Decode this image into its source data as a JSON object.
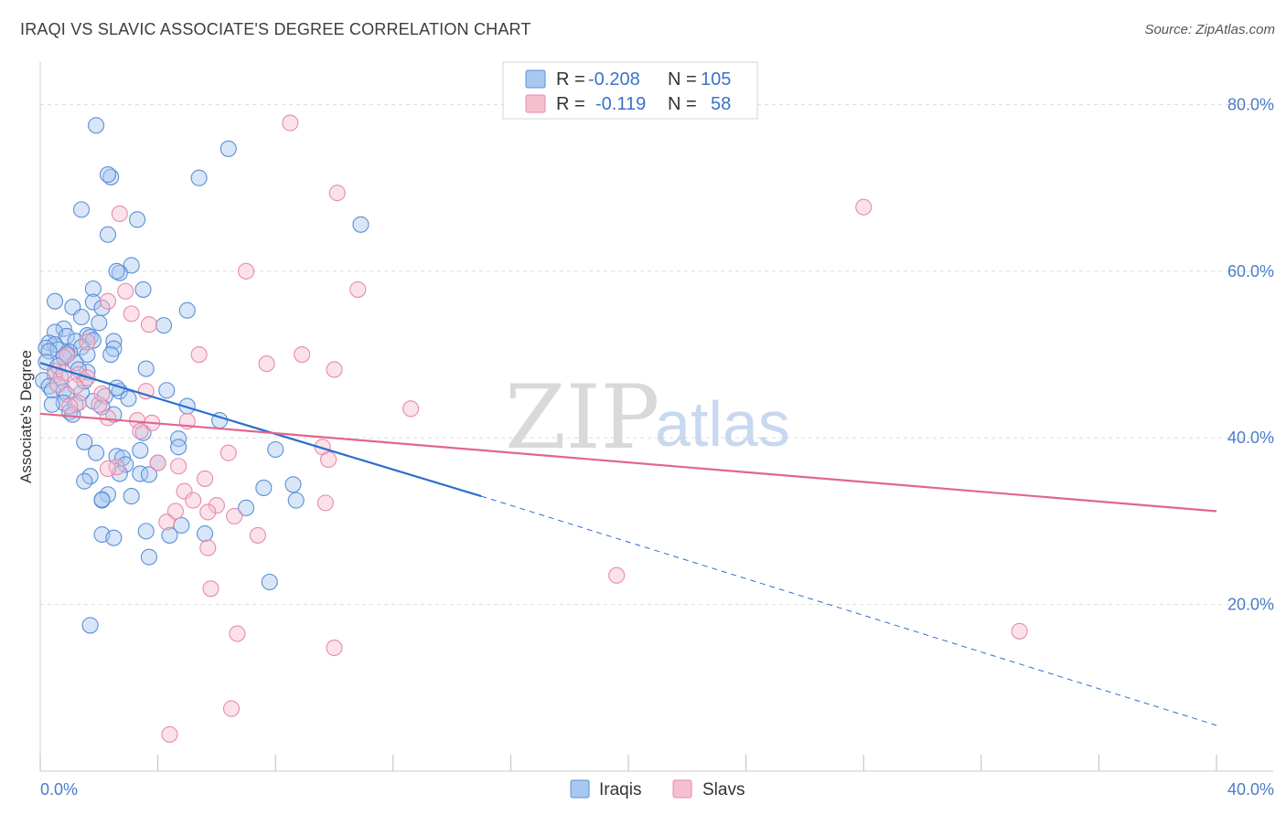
{
  "title": "IRAQI VS SLAVIC ASSOCIATE'S DEGREE CORRELATION CHART",
  "source": "Source: ZipAtlas.com",
  "watermark": {
    "zip": "ZIP",
    "atlas": "atlas"
  },
  "legend": {
    "r_label": "R =",
    "n_label": "N =",
    "iraqis": {
      "r": "-0.208",
      "n": "105"
    },
    "slavs": {
      "r": "-0.119",
      "n": "58"
    }
  },
  "bottom_legend": [
    "Iraqis",
    "Slavs"
  ],
  "colors": {
    "iraqis_fill": "#a9c8f0",
    "iraqis_stroke": "#5b8fd6",
    "iraqis_line": "#2b6fcf",
    "slavs_fill": "#f6bfd0",
    "slavs_stroke": "#e88aab",
    "slavs_line": "#e0668f",
    "tick_text": "#4a7cc9"
  },
  "chart_data": {
    "type": "scatter",
    "title": "IRAQI VS SLAVIC ASSOCIATE'S DEGREE CORRELATION CHART",
    "xlabel": "",
    "ylabel": "Associate's Degree",
    "xlim": [
      0,
      40
    ],
    "ylim": [
      0,
      84
    ],
    "x_tick_labels": [
      "0.0%",
      "40.0%"
    ],
    "y_ticks": [
      20,
      40,
      60,
      80
    ],
    "y_tick_labels": [
      "20.0%",
      "40.0%",
      "60.0%",
      "80.0%"
    ],
    "series": [
      {
        "name": "Iraqis",
        "r": -0.208,
        "n": 105,
        "trend": {
          "x0": 0,
          "y0": 49,
          "x1": 15,
          "y1": 33,
          "dash_to_x": 40,
          "dash_to_y": 5.5
        },
        "points": [
          [
            1.9,
            77.5
          ],
          [
            6.4,
            74.7
          ],
          [
            2.4,
            71.3
          ],
          [
            2.3,
            71.6
          ],
          [
            5.4,
            71.2
          ],
          [
            1.4,
            67.4
          ],
          [
            3.3,
            66.2
          ],
          [
            10.9,
            65.6
          ],
          [
            2.3,
            64.4
          ],
          [
            3.1,
            60.7
          ],
          [
            2.7,
            59.8
          ],
          [
            2.6,
            60.0
          ],
          [
            3.5,
            57.8
          ],
          [
            1.8,
            57.9
          ],
          [
            0.5,
            56.4
          ],
          [
            1.8,
            56.3
          ],
          [
            2.1,
            55.6
          ],
          [
            1.1,
            55.7
          ],
          [
            5.0,
            55.3
          ],
          [
            1.4,
            54.5
          ],
          [
            2.0,
            53.8
          ],
          [
            4.2,
            53.5
          ],
          [
            0.8,
            53.1
          ],
          [
            0.5,
            52.7
          ],
          [
            0.9,
            52.2
          ],
          [
            1.6,
            52.3
          ],
          [
            1.7,
            52.1
          ],
          [
            1.2,
            51.6
          ],
          [
            0.3,
            51.4
          ],
          [
            1.8,
            51.7
          ],
          [
            0.5,
            51.2
          ],
          [
            2.5,
            51.6
          ],
          [
            0.2,
            50.8
          ],
          [
            1.4,
            50.9
          ],
          [
            0.6,
            50.6
          ],
          [
            1.0,
            50.3
          ],
          [
            0.3,
            50.4
          ],
          [
            2.5,
            50.7
          ],
          [
            0.9,
            50.1
          ],
          [
            1.6,
            50.0
          ],
          [
            0.8,
            49.7
          ],
          [
            2.4,
            50.0
          ],
          [
            0.2,
            49.1
          ],
          [
            1.2,
            49.0
          ],
          [
            1.6,
            47.9
          ],
          [
            3.6,
            48.3
          ],
          [
            0.5,
            47.5
          ],
          [
            0.1,
            46.9
          ],
          [
            0.3,
            46.2
          ],
          [
            0.4,
            45.7
          ],
          [
            0.8,
            45.6
          ],
          [
            2.7,
            45.6
          ],
          [
            4.3,
            45.7
          ],
          [
            1.4,
            45.4
          ],
          [
            0.9,
            45.2
          ],
          [
            2.2,
            45.0
          ],
          [
            1.8,
            44.4
          ],
          [
            0.8,
            44.2
          ],
          [
            1.2,
            44.0
          ],
          [
            2.1,
            43.7
          ],
          [
            5.0,
            43.8
          ],
          [
            1.0,
            43.1
          ],
          [
            1.1,
            42.8
          ],
          [
            2.5,
            42.8
          ],
          [
            6.1,
            42.1
          ],
          [
            3.5,
            40.6
          ],
          [
            4.7,
            39.9
          ],
          [
            1.5,
            39.5
          ],
          [
            4.7,
            38.9
          ],
          [
            8.0,
            38.6
          ],
          [
            3.4,
            38.5
          ],
          [
            1.9,
            38.2
          ],
          [
            2.6,
            37.8
          ],
          [
            2.8,
            37.6
          ],
          [
            4.0,
            37.0
          ],
          [
            2.9,
            36.8
          ],
          [
            2.7,
            35.7
          ],
          [
            3.4,
            35.7
          ],
          [
            3.7,
            35.6
          ],
          [
            1.7,
            35.4
          ],
          [
            1.5,
            34.8
          ],
          [
            8.6,
            34.4
          ],
          [
            7.6,
            34.0
          ],
          [
            2.3,
            33.2
          ],
          [
            3.1,
            33.0
          ],
          [
            2.1,
            32.5
          ],
          [
            2.1,
            32.6
          ],
          [
            8.7,
            32.5
          ],
          [
            7.0,
            31.6
          ],
          [
            4.8,
            29.5
          ],
          [
            3.6,
            28.8
          ],
          [
            5.6,
            28.5
          ],
          [
            4.4,
            28.3
          ],
          [
            2.1,
            28.4
          ],
          [
            2.5,
            28.0
          ],
          [
            3.7,
            25.7
          ],
          [
            7.8,
            22.7
          ],
          [
            1.7,
            17.5
          ],
          [
            0.6,
            48.6
          ],
          [
            1.5,
            46.8
          ],
          [
            0.7,
            47.2
          ],
          [
            1.3,
            48.2
          ],
          [
            2.6,
            46.0
          ],
          [
            3.0,
            44.7
          ],
          [
            0.4,
            44.0
          ]
        ]
      },
      {
        "name": "Slavs",
        "r": -0.119,
        "n": 58,
        "trend": {
          "x0": 0,
          "y0": 42.9,
          "x1": 40,
          "y1": 31.2
        },
        "points": [
          [
            8.5,
            77.8
          ],
          [
            10.1,
            69.4
          ],
          [
            2.7,
            66.9
          ],
          [
            28.0,
            67.7
          ],
          [
            7.0,
            60.0
          ],
          [
            10.8,
            57.8
          ],
          [
            2.9,
            57.6
          ],
          [
            2.3,
            56.4
          ],
          [
            3.1,
            54.9
          ],
          [
            3.7,
            53.6
          ],
          [
            5.4,
            50.0
          ],
          [
            8.9,
            50.0
          ],
          [
            7.7,
            48.9
          ],
          [
            10.0,
            48.2
          ],
          [
            0.5,
            48.0
          ],
          [
            0.8,
            47.8
          ],
          [
            1.3,
            47.6
          ],
          [
            1.6,
            47.2
          ],
          [
            0.6,
            46.4
          ],
          [
            1.2,
            46.2
          ],
          [
            3.6,
            45.6
          ],
          [
            1.3,
            44.2
          ],
          [
            2.0,
            44.0
          ],
          [
            12.6,
            43.5
          ],
          [
            2.3,
            42.4
          ],
          [
            3.3,
            42.1
          ],
          [
            3.8,
            41.8
          ],
          [
            5.0,
            42.0
          ],
          [
            3.4,
            40.8
          ],
          [
            6.4,
            38.2
          ],
          [
            9.6,
            38.9
          ],
          [
            4.0,
            37.0
          ],
          [
            9.8,
            37.4
          ],
          [
            4.7,
            36.6
          ],
          [
            2.6,
            36.5
          ],
          [
            2.3,
            36.3
          ],
          [
            5.6,
            35.1
          ],
          [
            4.9,
            33.6
          ],
          [
            5.2,
            32.5
          ],
          [
            6.0,
            31.9
          ],
          [
            9.7,
            32.2
          ],
          [
            4.6,
            31.2
          ],
          [
            5.7,
            31.1
          ],
          [
            6.6,
            30.6
          ],
          [
            4.3,
            29.9
          ],
          [
            7.4,
            28.3
          ],
          [
            5.7,
            26.8
          ],
          [
            19.6,
            23.5
          ],
          [
            5.8,
            21.9
          ],
          [
            33.3,
            16.8
          ],
          [
            6.7,
            16.5
          ],
          [
            10.0,
            14.8
          ],
          [
            6.5,
            7.5
          ],
          [
            4.4,
            4.4
          ],
          [
            1.6,
            51.5
          ],
          [
            0.9,
            49.9
          ],
          [
            2.1,
            45.3
          ],
          [
            1.0,
            43.8
          ]
        ]
      }
    ]
  }
}
